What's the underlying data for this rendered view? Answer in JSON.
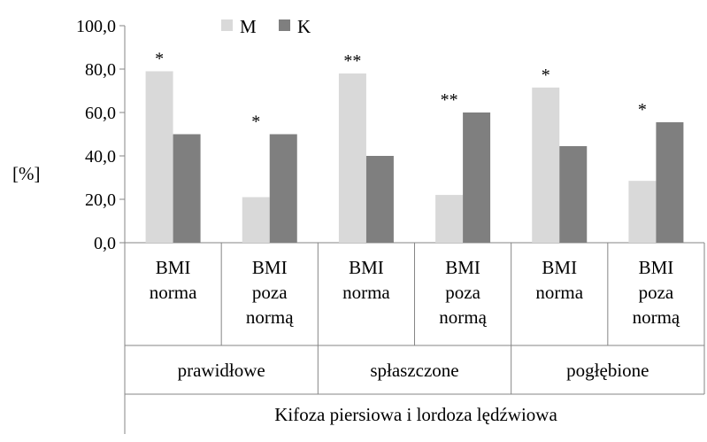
{
  "chart_data": {
    "type": "bar",
    "ylabel": "[%]",
    "xlabel": "Kifoza piersiowa i lordoza lędźwiowa",
    "ylim": [
      0,
      100
    ],
    "ytick_step": 20,
    "ytick_labels": [
      "0,0",
      "20,0",
      "40,0",
      "60,0",
      "80,0",
      "100,0"
    ],
    "grid": false,
    "legend_position": "top",
    "groups": [
      {
        "label": "prawidłowe",
        "span": 2
      },
      {
        "label": "spłaszczone",
        "span": 2
      },
      {
        "label": "pogłębione",
        "span": 2
      }
    ],
    "categories": [
      [
        "BMI",
        "norma"
      ],
      [
        "BMI",
        "poza",
        "normą"
      ],
      [
        "BMI",
        "norma"
      ],
      [
        "BMI",
        "poza",
        "normą"
      ],
      [
        "BMI",
        "norma"
      ],
      [
        "BMI",
        "poza",
        "normą"
      ]
    ],
    "series": [
      {
        "name": "M",
        "color": "#d9d9d9",
        "values": [
          79.0,
          21.0,
          78.0,
          22.0,
          71.5,
          28.5
        ]
      },
      {
        "name": "K",
        "color": "#7f7f7f",
        "values": [
          50.0,
          50.0,
          40.0,
          60.0,
          44.5,
          55.5
        ]
      }
    ],
    "significance": [
      "*",
      "*",
      "**",
      "**",
      "*",
      "*"
    ]
  }
}
